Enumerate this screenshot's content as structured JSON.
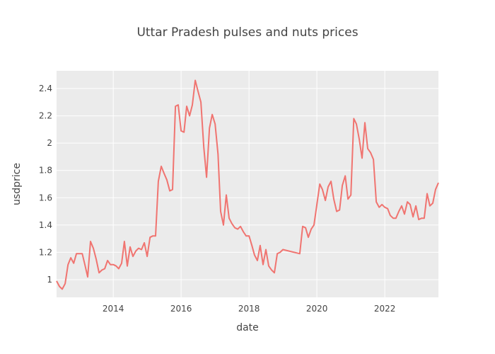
{
  "chart_data": {
    "type": "line",
    "title": "Uttar Pradesh pulses and nuts prices",
    "xlabel": "date",
    "ylabel": "usdprice",
    "xlim": [
      "2012-05-01",
      "2023-08-01"
    ],
    "ylim": [
      0.87,
      2.53
    ],
    "x_ticks": [
      "2014",
      "2016",
      "2018",
      "2020",
      "2022"
    ],
    "y_ticks": [
      "1",
      "1.2",
      "1.4",
      "1.6",
      "1.8",
      "2",
      "2.2",
      "2.4"
    ],
    "grid": true,
    "legend": "none",
    "colors": {
      "plot_background": "#ebebeb",
      "grid": "#ffffff",
      "series": "#f07470"
    },
    "series": [
      {
        "x": [
          "2012-05-01",
          "2012-06-01",
          "2012-07-01",
          "2012-08-01",
          "2012-09-01",
          "2012-10-01",
          "2012-11-01",
          "2012-12-01",
          "2013-01-01",
          "2013-02-01",
          "2013-03-01",
          "2013-04-01",
          "2013-05-01",
          "2013-06-01",
          "2013-07-01",
          "2013-08-01",
          "2013-09-01",
          "2013-10-01",
          "2013-11-01",
          "2013-12-01",
          "2014-01-01",
          "2014-02-01",
          "2014-03-01",
          "2014-04-01",
          "2014-05-01",
          "2014-06-01",
          "2014-07-01",
          "2014-08-01",
          "2014-09-01",
          "2014-10-01",
          "2014-11-01",
          "2014-12-01",
          "2015-01-01",
          "2015-02-01",
          "2015-03-01",
          "2015-04-01",
          "2015-05-01",
          "2015-06-01",
          "2015-07-01",
          "2015-08-01",
          "2015-09-01",
          "2015-10-01",
          "2015-11-01",
          "2015-12-01",
          "2016-01-01",
          "2016-02-01",
          "2016-03-01",
          "2016-04-01",
          "2016-05-01",
          "2016-06-01",
          "2016-07-01",
          "2016-08-01",
          "2016-09-01",
          "2016-10-01",
          "2016-11-01",
          "2016-12-01",
          "2017-01-01",
          "2017-02-01",
          "2017-03-01",
          "2017-04-01",
          "2017-05-01",
          "2017-06-01",
          "2017-07-01",
          "2017-08-01",
          "2017-09-01",
          "2017-10-01",
          "2017-11-01",
          "2017-12-01",
          "2018-01-01",
          "2018-02-01",
          "2018-03-01",
          "2018-04-01",
          "2018-05-01",
          "2018-06-01",
          "2018-07-01",
          "2018-08-01",
          "2018-09-01",
          "2018-10-01",
          "2018-11-01",
          "2018-12-01",
          "2019-01-01",
          "2019-07-01",
          "2019-08-01",
          "2019-09-01",
          "2019-10-01",
          "2019-11-01",
          "2019-12-01",
          "2020-01-01",
          "2020-02-01",
          "2020-03-01",
          "2020-04-01",
          "2020-05-01",
          "2020-06-01",
          "2020-07-01",
          "2020-08-01",
          "2020-09-01",
          "2020-10-01",
          "2020-11-01",
          "2020-12-01",
          "2021-01-01",
          "2021-02-01",
          "2021-03-01",
          "2021-04-01",
          "2021-05-01",
          "2021-06-01",
          "2021-07-01",
          "2021-08-01",
          "2021-09-01",
          "2021-10-01",
          "2021-11-01",
          "2021-12-01",
          "2022-01-01",
          "2022-02-01",
          "2022-03-01",
          "2022-04-01",
          "2022-05-01",
          "2022-06-01",
          "2022-07-01",
          "2022-08-01",
          "2022-09-01",
          "2022-10-01",
          "2022-11-01",
          "2022-12-01",
          "2023-01-01",
          "2023-02-01",
          "2023-03-01",
          "2023-04-01",
          "2023-05-01",
          "2023-06-01",
          "2023-07-01",
          "2023-08-01"
        ],
        "y": [
          0.99,
          0.95,
          0.93,
          0.97,
          1.11,
          1.16,
          1.12,
          1.19,
          1.19,
          1.19,
          1.11,
          1.02,
          1.28,
          1.23,
          1.15,
          1.05,
          1.07,
          1.08,
          1.14,
          1.11,
          1.11,
          1.1,
          1.08,
          1.12,
          1.28,
          1.1,
          1.24,
          1.17,
          1.21,
          1.23,
          1.22,
          1.27,
          1.17,
          1.31,
          1.32,
          1.32,
          1.72,
          1.83,
          1.78,
          1.73,
          1.65,
          1.66,
          2.27,
          2.28,
          2.09,
          2.08,
          2.27,
          2.2,
          2.28,
          2.46,
          2.38,
          2.3,
          1.97,
          1.75,
          2.11,
          2.21,
          2.14,
          1.92,
          1.5,
          1.4,
          1.62,
          1.45,
          1.41,
          1.38,
          1.37,
          1.39,
          1.35,
          1.32,
          1.32,
          1.25,
          1.18,
          1.14,
          1.25,
          1.11,
          1.22,
          1.1,
          1.07,
          1.05,
          1.19,
          1.2,
          1.22,
          1.19,
          1.39,
          1.38,
          1.31,
          1.37,
          1.4,
          1.55,
          1.7,
          1.66,
          1.58,
          1.68,
          1.72,
          1.59,
          1.5,
          1.51,
          1.69,
          1.76,
          1.59,
          1.62,
          2.18,
          2.14,
          2.03,
          1.89,
          2.15,
          1.96,
          1.93,
          1.88,
          1.57,
          1.53,
          1.55,
          1.53,
          1.52,
          1.47,
          1.45,
          1.45,
          1.5,
          1.54,
          1.48,
          1.57,
          1.55,
          1.46,
          1.54,
          1.44,
          1.45,
          1.45,
          1.63,
          1.54,
          1.56,
          1.66,
          1.71
        ]
      }
    ]
  }
}
